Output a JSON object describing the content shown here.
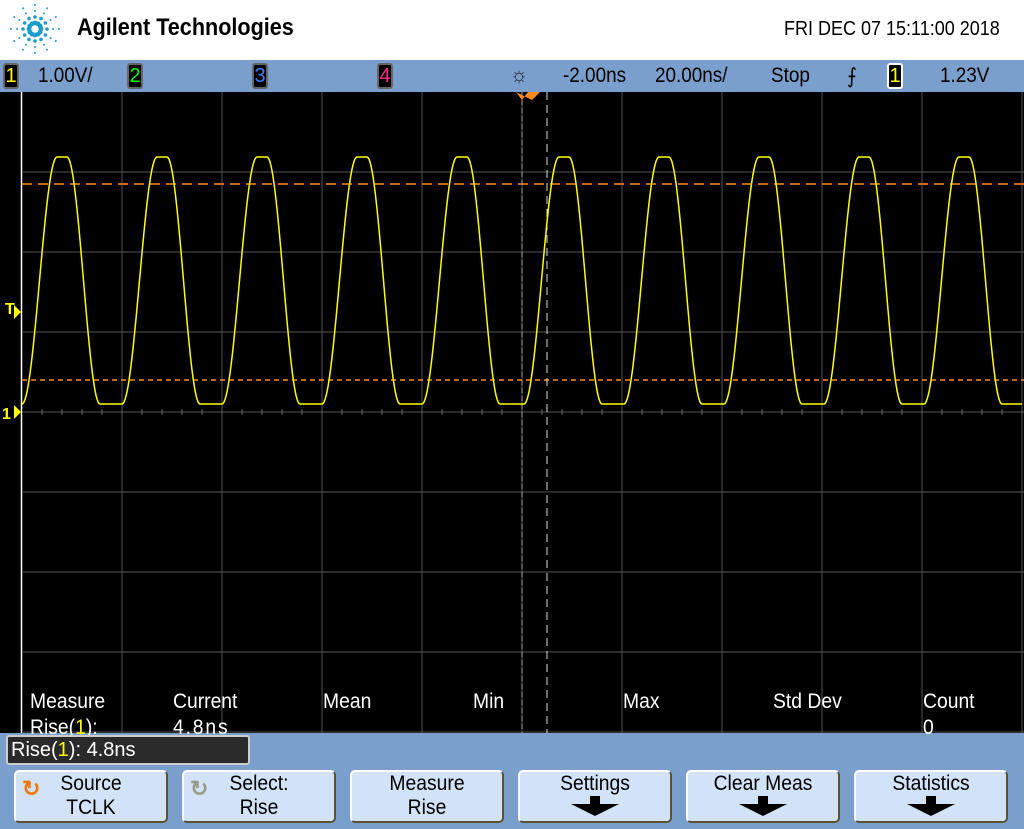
{
  "header": {
    "brand": "Agilent Technologies",
    "datetime": "FRI DEC 07 15:11:00 2018"
  },
  "status": {
    "ch1": "1",
    "ch1_scale": "1.00V/",
    "ch2": "2",
    "ch3": "3",
    "ch4": "4",
    "delay": "-2.00ns",
    "timebase": "20.00ns/",
    "run_state": "Stop",
    "trigger_source": "1",
    "trigger_level": "1.23V"
  },
  "colors": {
    "ch1": "#ffff00",
    "ch2": "#00ff00",
    "ch3": "#3a7bff",
    "ch4": "#ff2a8a",
    "cursor": "#ff8c1a",
    "panel": "#7b9fcc",
    "button": "#d2e3f8"
  },
  "markers": {
    "trigger": "T",
    "ground": "1"
  },
  "measurements": {
    "headers": [
      "Measure",
      "Current",
      "Mean",
      "Min",
      "Max",
      "Std Dev",
      "Count"
    ],
    "row": {
      "name_prefix": "Rise(",
      "channel": "1",
      "name_suffix": "):",
      "current": "4.8ns",
      "mean": "",
      "min": "",
      "max": "",
      "stddev": "",
      "count": "0"
    }
  },
  "message": {
    "prefix": "Rise(",
    "channel": "1",
    "suffix": "): 4.8ns"
  },
  "softkeys": [
    {
      "top": "Source",
      "bottom": "TCLK",
      "icon": "rotary-knob-icon"
    },
    {
      "top": "Select:",
      "bottom": "Rise",
      "icon": "rotary-knob-icon"
    },
    {
      "top": "Measure",
      "bottom": "Rise"
    },
    {
      "top": "Settings",
      "icon": "arrow-down-icon"
    },
    {
      "top": "Clear Meas",
      "icon": "arrow-down-icon"
    },
    {
      "top": "Statistics",
      "icon": "arrow-down-icon"
    }
  ]
}
